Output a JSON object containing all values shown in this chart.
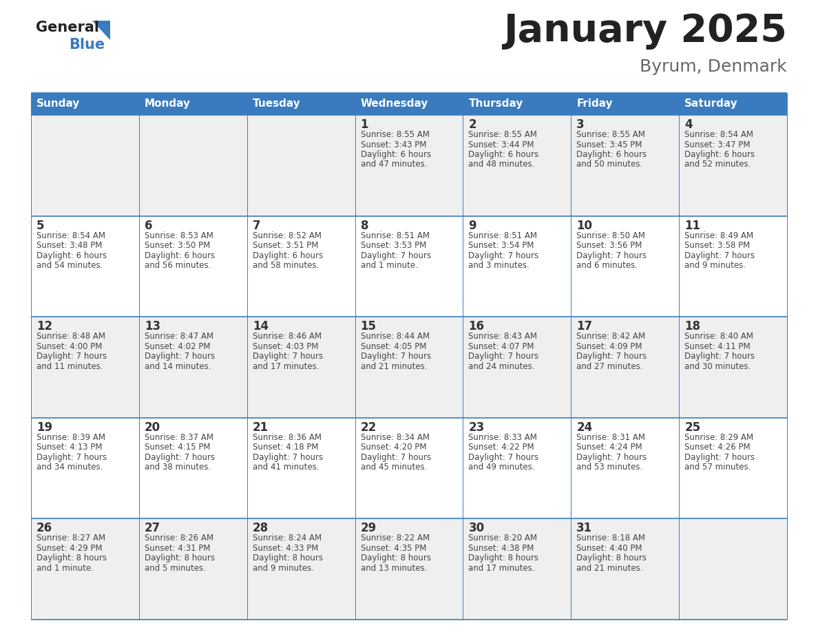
{
  "title": "January 2025",
  "subtitle": "Byrum, Denmark",
  "days_of_week": [
    "Sunday",
    "Monday",
    "Tuesday",
    "Wednesday",
    "Thursday",
    "Friday",
    "Saturday"
  ],
  "header_bg": "#3a7bbf",
  "header_text": "#ffffff",
  "row_bg_odd": "#efefef",
  "row_bg_even": "#ffffff",
  "cell_text": "#444444",
  "date_text": "#333333",
  "border_color": "#3a7bbf",
  "title_color": "#222222",
  "subtitle_color": "#666666",
  "logo_general_color": "#222222",
  "logo_blue_color": "#3a7bbf",
  "logo_triangle_color": "#3a7bbf",
  "calendar": [
    [
      {
        "day": "",
        "sunrise": "",
        "sunset": "",
        "daylight": ""
      },
      {
        "day": "",
        "sunrise": "",
        "sunset": "",
        "daylight": ""
      },
      {
        "day": "",
        "sunrise": "",
        "sunset": "",
        "daylight": ""
      },
      {
        "day": "1",
        "sunrise": "8:55 AM",
        "sunset": "3:43 PM",
        "daylight": "6 hours\nand 47 minutes."
      },
      {
        "day": "2",
        "sunrise": "8:55 AM",
        "sunset": "3:44 PM",
        "daylight": "6 hours\nand 48 minutes."
      },
      {
        "day": "3",
        "sunrise": "8:55 AM",
        "sunset": "3:45 PM",
        "daylight": "6 hours\nand 50 minutes."
      },
      {
        "day": "4",
        "sunrise": "8:54 AM",
        "sunset": "3:47 PM",
        "daylight": "6 hours\nand 52 minutes."
      }
    ],
    [
      {
        "day": "5",
        "sunrise": "8:54 AM",
        "sunset": "3:48 PM",
        "daylight": "6 hours\nand 54 minutes."
      },
      {
        "day": "6",
        "sunrise": "8:53 AM",
        "sunset": "3:50 PM",
        "daylight": "6 hours\nand 56 minutes."
      },
      {
        "day": "7",
        "sunrise": "8:52 AM",
        "sunset": "3:51 PM",
        "daylight": "6 hours\nand 58 minutes."
      },
      {
        "day": "8",
        "sunrise": "8:51 AM",
        "sunset": "3:53 PM",
        "daylight": "7 hours\nand 1 minute."
      },
      {
        "day": "9",
        "sunrise": "8:51 AM",
        "sunset": "3:54 PM",
        "daylight": "7 hours\nand 3 minutes."
      },
      {
        "day": "10",
        "sunrise": "8:50 AM",
        "sunset": "3:56 PM",
        "daylight": "7 hours\nand 6 minutes."
      },
      {
        "day": "11",
        "sunrise": "8:49 AM",
        "sunset": "3:58 PM",
        "daylight": "7 hours\nand 9 minutes."
      }
    ],
    [
      {
        "day": "12",
        "sunrise": "8:48 AM",
        "sunset": "4:00 PM",
        "daylight": "7 hours\nand 11 minutes."
      },
      {
        "day": "13",
        "sunrise": "8:47 AM",
        "sunset": "4:02 PM",
        "daylight": "7 hours\nand 14 minutes."
      },
      {
        "day": "14",
        "sunrise": "8:46 AM",
        "sunset": "4:03 PM",
        "daylight": "7 hours\nand 17 minutes."
      },
      {
        "day": "15",
        "sunrise": "8:44 AM",
        "sunset": "4:05 PM",
        "daylight": "7 hours\nand 21 minutes."
      },
      {
        "day": "16",
        "sunrise": "8:43 AM",
        "sunset": "4:07 PM",
        "daylight": "7 hours\nand 24 minutes."
      },
      {
        "day": "17",
        "sunrise": "8:42 AM",
        "sunset": "4:09 PM",
        "daylight": "7 hours\nand 27 minutes."
      },
      {
        "day": "18",
        "sunrise": "8:40 AM",
        "sunset": "4:11 PM",
        "daylight": "7 hours\nand 30 minutes."
      }
    ],
    [
      {
        "day": "19",
        "sunrise": "8:39 AM",
        "sunset": "4:13 PM",
        "daylight": "7 hours\nand 34 minutes."
      },
      {
        "day": "20",
        "sunrise": "8:37 AM",
        "sunset": "4:15 PM",
        "daylight": "7 hours\nand 38 minutes."
      },
      {
        "day": "21",
        "sunrise": "8:36 AM",
        "sunset": "4:18 PM",
        "daylight": "7 hours\nand 41 minutes."
      },
      {
        "day": "22",
        "sunrise": "8:34 AM",
        "sunset": "4:20 PM",
        "daylight": "7 hours\nand 45 minutes."
      },
      {
        "day": "23",
        "sunrise": "8:33 AM",
        "sunset": "4:22 PM",
        "daylight": "7 hours\nand 49 minutes."
      },
      {
        "day": "24",
        "sunrise": "8:31 AM",
        "sunset": "4:24 PM",
        "daylight": "7 hours\nand 53 minutes."
      },
      {
        "day": "25",
        "sunrise": "8:29 AM",
        "sunset": "4:26 PM",
        "daylight": "7 hours\nand 57 minutes."
      }
    ],
    [
      {
        "day": "26",
        "sunrise": "8:27 AM",
        "sunset": "4:29 PM",
        "daylight": "8 hours\nand 1 minute."
      },
      {
        "day": "27",
        "sunrise": "8:26 AM",
        "sunset": "4:31 PM",
        "daylight": "8 hours\nand 5 minutes."
      },
      {
        "day": "28",
        "sunrise": "8:24 AM",
        "sunset": "4:33 PM",
        "daylight": "8 hours\nand 9 minutes."
      },
      {
        "day": "29",
        "sunrise": "8:22 AM",
        "sunset": "4:35 PM",
        "daylight": "8 hours\nand 13 minutes."
      },
      {
        "day": "30",
        "sunrise": "8:20 AM",
        "sunset": "4:38 PM",
        "daylight": "8 hours\nand 17 minutes."
      },
      {
        "day": "31",
        "sunrise": "8:18 AM",
        "sunset": "4:40 PM",
        "daylight": "8 hours\nand 21 minutes."
      },
      {
        "day": "",
        "sunrise": "",
        "sunset": "",
        "daylight": ""
      }
    ]
  ],
  "figsize": [
    11.88,
    9.18
  ],
  "dpi": 100
}
